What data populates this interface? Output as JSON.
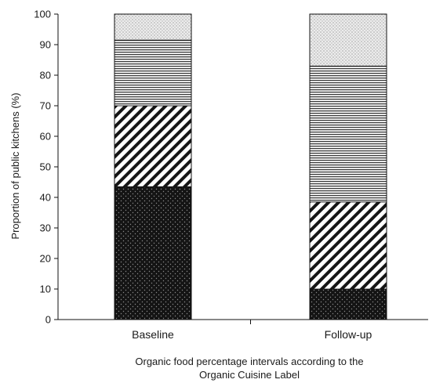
{
  "chart_data": {
    "type": "bar",
    "stacked": true,
    "categories": [
      "Baseline",
      "Follow-up"
    ],
    "series": [
      {
        "pattern": "dark-dots",
        "values": [
          43.5,
          10
        ]
      },
      {
        "pattern": "diagonal-stripes",
        "values": [
          26.5,
          28.5
        ]
      },
      {
        "pattern": "horizontal-lines",
        "values": [
          21.5,
          44.5
        ]
      },
      {
        "pattern": "light-stipple",
        "values": [
          8.5,
          17
        ]
      }
    ],
    "ylabel": "Proportion of public kitchens (%)",
    "xlabel_lines": [
      "Organic food percentage intervals according to the",
      "Organic Cuisine Label"
    ],
    "ylim": [
      0,
      100
    ],
    "yticks": [
      0,
      10,
      20,
      30,
      40,
      50,
      60,
      70,
      80,
      90,
      100
    ],
    "grid": false,
    "legend": "none"
  }
}
